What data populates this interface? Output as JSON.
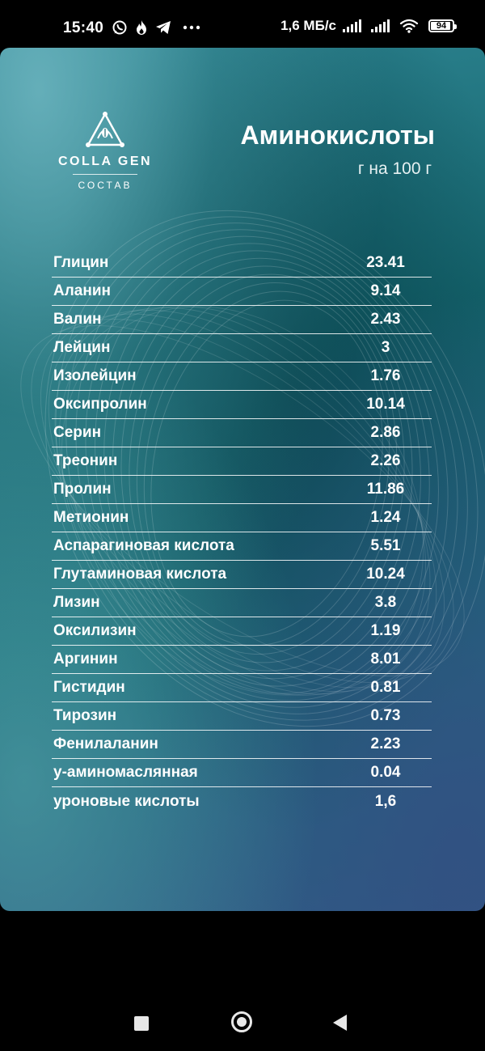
{
  "status_bar": {
    "time": "15:40",
    "net_speed": "1,6 МБ/с",
    "battery": "94",
    "notification_icons": [
      "whatsapp-icon",
      "flame-icon",
      "telegram-icon",
      "more-dots-icon"
    ],
    "system_icons": [
      "signal-icon",
      "signal-icon",
      "wifi-icon",
      "battery-icon"
    ]
  },
  "card": {
    "logo": {
      "name": "COLLA GEN",
      "subtitle": "СОСТАВ"
    },
    "title": "Аминокислоты",
    "subtitle": "г на 100 г",
    "rows": [
      {
        "name": "Глицин",
        "value": "23.41"
      },
      {
        "name": "Аланин",
        "value": "9.14"
      },
      {
        "name": "Валин",
        "value": "2.43"
      },
      {
        "name": "Лейцин",
        "value": "3"
      },
      {
        "name": "Изолейцин",
        "value": "1.76"
      },
      {
        "name": "Оксипролин",
        "value": "10.14"
      },
      {
        "name": "Серин",
        "value": "2.86"
      },
      {
        "name": "Треонин",
        "value": "2.26"
      },
      {
        "name": "Пролин",
        "value": "11.86"
      },
      {
        "name": "Метионин",
        "value": "1.24"
      },
      {
        "name": "Аспарагиновая кислота",
        "value": "5.51"
      },
      {
        "name": "Глутаминовая кислота",
        "value": "10.24"
      },
      {
        "name": "Лизин",
        "value": "3.8"
      },
      {
        "name": "Оксилизин",
        "value": "1.19"
      },
      {
        "name": "Аргинин",
        "value": "8.01"
      },
      {
        "name": "Гистидин",
        "value": "0.81"
      },
      {
        "name": "Тирозин",
        "value": "0.73"
      },
      {
        "name": "Фенилаланин",
        "value": "2.23"
      },
      {
        "name": "y-аминомасляннaя",
        "value": "0.04"
      },
      {
        "name": "уроновые кислоты",
        "value": "1,6"
      }
    ]
  },
  "nav_bar": {
    "icons": [
      "recent-apps-icon",
      "home-icon",
      "back-icon"
    ]
  }
}
